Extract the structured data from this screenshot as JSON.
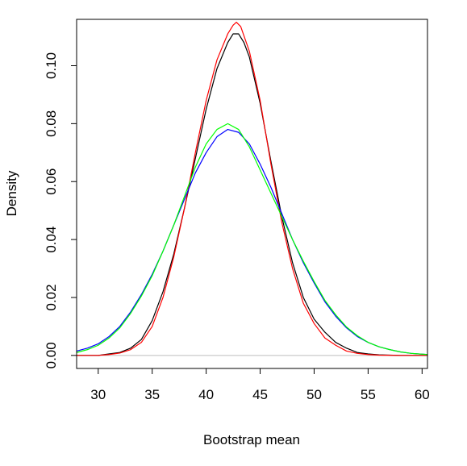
{
  "chart_data": {
    "type": "line",
    "title": "",
    "xlabel": "Bootstrap mean",
    "ylabel": "Density",
    "xlim": [
      28,
      60.5
    ],
    "ylim": [
      -0.0045,
      0.116
    ],
    "xticks": [
      30,
      35,
      40,
      45,
      50,
      55,
      60
    ],
    "xtick_labels": [
      "30",
      "35",
      "40",
      "45",
      "50",
      "55",
      "60"
    ],
    "yticks": [
      0.0,
      0.02,
      0.04,
      0.06,
      0.08,
      0.1
    ],
    "ytick_labels": [
      "0.00",
      "0.02",
      "0.04",
      "0.06",
      "0.08",
      "0.10"
    ],
    "grid": false,
    "legend": "none",
    "baseline": {
      "y": 0,
      "color": "#bebebe"
    },
    "series": [
      {
        "color": "#000000",
        "x": [
          28,
          30,
          31,
          32,
          33,
          34,
          35,
          36,
          37,
          38,
          39,
          40,
          41,
          42,
          42.5,
          43,
          43.5,
          44,
          45,
          46,
          47,
          48,
          49,
          50,
          51,
          52,
          53,
          54,
          55,
          56,
          58,
          60.5
        ],
        "y": [
          0.0,
          0.0,
          0.0005,
          0.001,
          0.0025,
          0.0055,
          0.012,
          0.022,
          0.035,
          0.051,
          0.068,
          0.085,
          0.099,
          0.108,
          0.111,
          0.111,
          0.108,
          0.103,
          0.087,
          0.067,
          0.048,
          0.032,
          0.02,
          0.0125,
          0.008,
          0.0045,
          0.0025,
          0.001,
          0.0005,
          0.0002,
          0.0,
          0.0
        ]
      },
      {
        "color": "#ff0000",
        "x": [
          28,
          30,
          31,
          32,
          33,
          34,
          35,
          36,
          37,
          38,
          39,
          40,
          41,
          42,
          42.5,
          42.8,
          43.2,
          44,
          45,
          46,
          47,
          48,
          49,
          50,
          51,
          52,
          53,
          54,
          55,
          56,
          58,
          60.5
        ],
        "y": [
          0.0,
          0.0,
          0.0003,
          0.0008,
          0.002,
          0.0045,
          0.01,
          0.02,
          0.034,
          0.051,
          0.07,
          0.088,
          0.102,
          0.111,
          0.114,
          0.115,
          0.1135,
          0.105,
          0.088,
          0.066,
          0.046,
          0.03,
          0.018,
          0.011,
          0.006,
          0.0035,
          0.0015,
          0.0007,
          0.0003,
          0.0001,
          0.0,
          0.0
        ]
      },
      {
        "color": "#0000ff",
        "x": [
          28,
          29,
          30,
          31,
          32,
          33,
          34,
          35,
          36,
          37,
          38,
          39,
          40,
          41,
          42,
          43,
          44,
          45,
          46,
          47,
          48,
          49,
          50,
          51,
          52,
          53,
          54,
          55,
          56,
          57,
          58,
          59,
          60.5
        ],
        "y": [
          0.0015,
          0.0025,
          0.004,
          0.0065,
          0.01,
          0.015,
          0.021,
          0.028,
          0.036,
          0.045,
          0.054,
          0.063,
          0.07,
          0.0755,
          0.078,
          0.077,
          0.073,
          0.066,
          0.058,
          0.049,
          0.04,
          0.032,
          0.025,
          0.0185,
          0.0135,
          0.0095,
          0.0065,
          0.0045,
          0.003,
          0.002,
          0.0012,
          0.0007,
          0.0003
        ]
      },
      {
        "color": "#00ff00",
        "x": [
          28,
          29,
          30,
          31,
          32,
          33,
          34,
          35,
          36,
          37,
          38,
          39,
          40,
          41,
          42,
          43,
          44,
          45,
          46,
          47,
          48,
          49,
          50,
          51,
          52,
          53,
          54,
          55,
          56,
          57,
          58,
          59,
          60.5
        ],
        "y": [
          0.001,
          0.002,
          0.0035,
          0.006,
          0.0095,
          0.0145,
          0.0205,
          0.0275,
          0.036,
          0.045,
          0.055,
          0.065,
          0.073,
          0.078,
          0.08,
          0.078,
          0.072,
          0.064,
          0.056,
          0.048,
          0.04,
          0.0325,
          0.0255,
          0.019,
          0.014,
          0.0098,
          0.0068,
          0.0045,
          0.003,
          0.002,
          0.0012,
          0.0007,
          0.0003
        ]
      }
    ]
  }
}
